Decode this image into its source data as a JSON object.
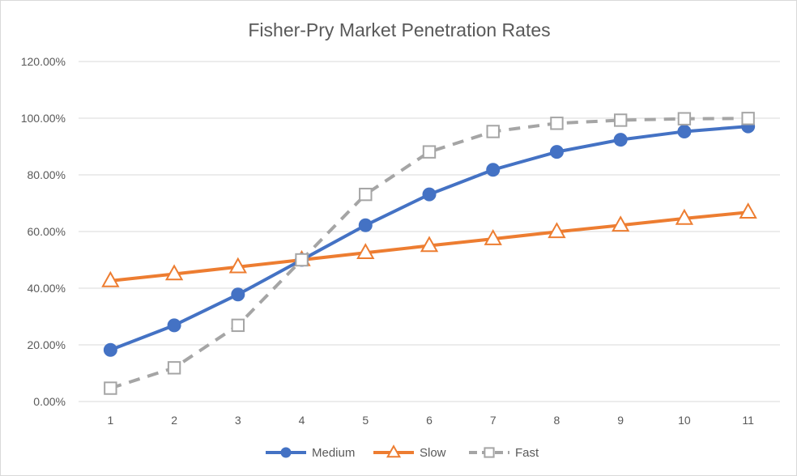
{
  "chart_data": {
    "type": "line",
    "title": "Fisher-Pry Market Penetration Rates",
    "xlabel": "",
    "ylabel": "",
    "categories": [
      "1",
      "2",
      "3",
      "4",
      "5",
      "6",
      "7",
      "8",
      "9",
      "10",
      "11"
    ],
    "ylim": [
      0,
      1.2
    ],
    "y_ticks": [
      "0.00%",
      "20.00%",
      "40.00%",
      "60.00%",
      "80.00%",
      "100.00%",
      "120.00%"
    ],
    "y_tick_values": [
      0,
      0.2,
      0.4,
      0.6,
      0.8,
      1.0,
      1.2
    ],
    "grid": true,
    "legend_position": "bottom",
    "series": [
      {
        "name": "Medium",
        "color": "#4472C4",
        "marker": "circle",
        "dash": "solid",
        "values": [
          0.182,
          0.269,
          0.378,
          0.5,
          0.622,
          0.731,
          0.818,
          0.881,
          0.924,
          0.953,
          0.971
        ]
      },
      {
        "name": "Slow",
        "color": "#ED7D31",
        "marker": "triangle",
        "dash": "solid",
        "values": [
          0.426,
          0.45,
          0.475,
          0.5,
          0.525,
          0.55,
          0.574,
          0.599,
          0.622,
          0.646,
          0.668
        ]
      },
      {
        "name": "Fast",
        "color": "#A5A5A5",
        "marker": "square",
        "dash": "dashed",
        "values": [
          0.047,
          0.119,
          0.269,
          0.5,
          0.731,
          0.881,
          0.953,
          0.982,
          0.993,
          0.998,
          0.999
        ]
      }
    ]
  }
}
